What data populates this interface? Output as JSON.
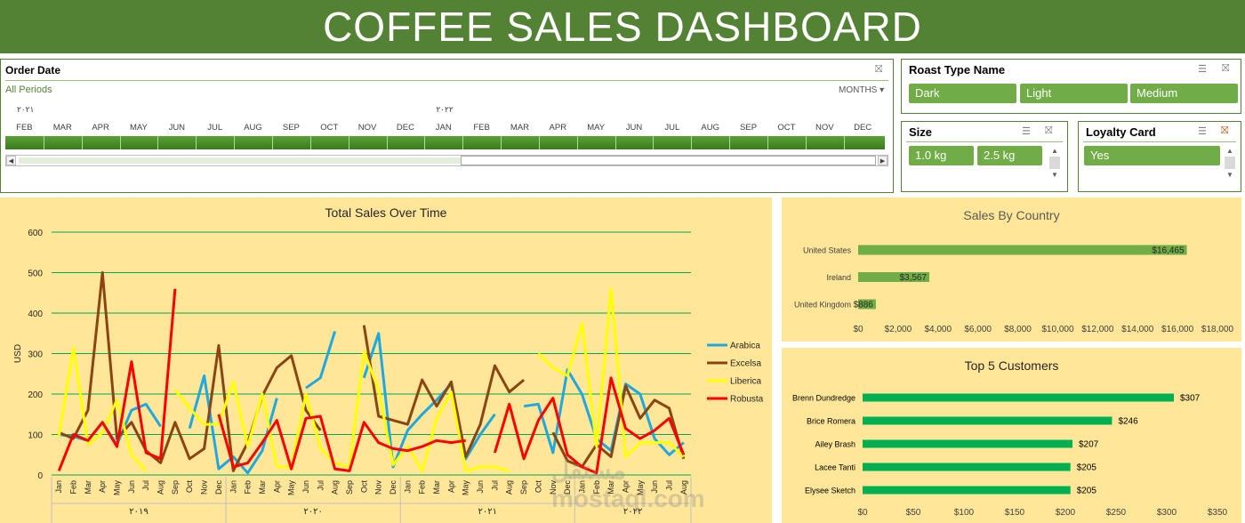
{
  "header": {
    "title": "COFFEE SALES DASHBOARD"
  },
  "order_date": {
    "title": "Order Date",
    "period_label": "All Periods",
    "level_label": "MONTHS",
    "years": [
      "٢٠٢١",
      "٢٠٢٢"
    ],
    "months": [
      "FEB",
      "MAR",
      "APR",
      "MAY",
      "JUN",
      "JUL",
      "AUG",
      "SEP",
      "OCT",
      "NOV",
      "DEC",
      "JAN",
      "FEB",
      "MAR",
      "APR",
      "MAY",
      "JUN",
      "JUL",
      "AUG",
      "SEP",
      "OCT",
      "NOV",
      "DEC"
    ]
  },
  "roast_type": {
    "title": "Roast Type Name",
    "items": [
      "Dark",
      "Light",
      "Medium"
    ]
  },
  "size": {
    "title": "Size",
    "items": [
      "1.0 kg",
      "2.5 kg"
    ]
  },
  "loyalty": {
    "title": "Loyalty Card",
    "items": [
      "Yes"
    ]
  },
  "watermark": "مستقل mostaql.com",
  "colors": {
    "arabica": "#1fa8df",
    "excelsa": "#8b4513",
    "liberica": "#ffff00",
    "robusta": "#ff0000",
    "green": "#548235",
    "bar": "#70ad47",
    "bar2": "#00b050"
  },
  "chart_data": [
    {
      "type": "line",
      "title": "Total Sales Over Time",
      "ylabel": "USD",
      "ylim": [
        0,
        600
      ],
      "yticks": [
        0,
        100,
        200,
        300,
        400,
        500,
        600
      ],
      "categories": [
        "Jan",
        "Feb",
        "Mar",
        "Apr",
        "May",
        "Jun",
        "Jul",
        "Aug",
        "Sep",
        "Oct",
        "Nov",
        "Dec",
        "Jan",
        "Feb",
        "Mar",
        "Apr",
        "May",
        "Jun",
        "Jul",
        "Aug",
        "Sep",
        "Oct",
        "Nov",
        "Dec",
        "Jan",
        "Feb",
        "Mar",
        "Apr",
        "May",
        "Jun",
        "Jul",
        "Aug",
        "Sep",
        "Oct",
        "Nov",
        "Dec",
        "Jan",
        "Feb",
        "Mar",
        "Apr",
        "May",
        "Jun",
        "Jul",
        "Aug"
      ],
      "years": [
        {
          "label": "٢٠١٩",
          "start": 0,
          "end": 11
        },
        {
          "label": "٢٠٢٠",
          "start": 12,
          "end": 23
        },
        {
          "label": "٢٠٢١",
          "start": 24,
          "end": 35
        },
        {
          "label": "٢٠٢٢",
          "start": 36,
          "end": 43
        }
      ],
      "series": [
        {
          "name": "Arabica",
          "values": [
            100,
            95,
            85,
            130,
            75,
            160,
            175,
            120,
            null,
            115,
            245,
            15,
            45,
            5,
            60,
            190,
            null,
            215,
            240,
            355,
            null,
            240,
            350,
            20,
            110,
            150,
            185,
            225,
            40,
            100,
            150,
            null,
            170,
            175,
            55,
            260,
            200,
            90,
            60,
            225,
            200,
            90,
            50,
            80
          ]
        },
        {
          "name": "Excelsa",
          "values": [
            105,
            90,
            160,
            500,
            90,
            130,
            60,
            30,
            130,
            40,
            65,
            320,
            10,
            80,
            195,
            265,
            295,
            160,
            110,
            null,
            null,
            370,
            145,
            135,
            125,
            235,
            170,
            230,
            45,
            125,
            270,
            205,
            235,
            null,
            105,
            35,
            20,
            75,
            45,
            220,
            140,
            185,
            165,
            40
          ]
        },
        {
          "name": "Liberica",
          "values": [
            95,
            315,
            75,
            105,
            185,
            50,
            10,
            null,
            210,
            165,
            125,
            125,
            230,
            70,
            200,
            20,
            20,
            200,
            65,
            30,
            20,
            305,
            210,
            25,
            70,
            10,
            140,
            205,
            10,
            20,
            20,
            10,
            null,
            300,
            265,
            245,
            375,
            70,
            460,
            45,
            80,
            80,
            80,
            45
          ]
        },
        {
          "name": "Robusta",
          "values": [
            10,
            100,
            85,
            130,
            70,
            280,
            55,
            40,
            460,
            null,
            null,
            150,
            20,
            30,
            80,
            135,
            15,
            140,
            145,
            15,
            10,
            130,
            80,
            65,
            60,
            70,
            85,
            80,
            85,
            null,
            55,
            175,
            40,
            135,
            190,
            50,
            20,
            5,
            240,
            115,
            90,
            110,
            140,
            50
          ]
        }
      ]
    },
    {
      "type": "bar",
      "title": "Sales By Country",
      "categories": [
        "United States",
        "Ireland",
        "United Kingdom"
      ],
      "values": [
        16465,
        3567,
        886
      ],
      "value_labels": [
        "$16,465",
        "$3,567",
        "$886"
      ],
      "xlim": [
        0,
        18000
      ],
      "xticks": [
        "$0",
        "$2,000",
        "$4,000",
        "$6,000",
        "$8,000",
        "$10,000",
        "$12,000",
        "$14,000",
        "$16,000",
        "$18,000"
      ]
    },
    {
      "type": "bar",
      "title": "Top 5 Customers",
      "categories": [
        "Brenn Dundredge",
        "Brice Romera",
        "Ailey Brash",
        "Lacee Tanti",
        "Elysee Sketch"
      ],
      "values": [
        307,
        246,
        207,
        205,
        205
      ],
      "value_labels": [
        "$307",
        "$246",
        "$207",
        "$205",
        "$205"
      ],
      "xlim": [
        0,
        350
      ],
      "xticks": [
        "$0",
        "$50",
        "$100",
        "$150",
        "$200",
        "$250",
        "$300",
        "$350"
      ]
    }
  ]
}
